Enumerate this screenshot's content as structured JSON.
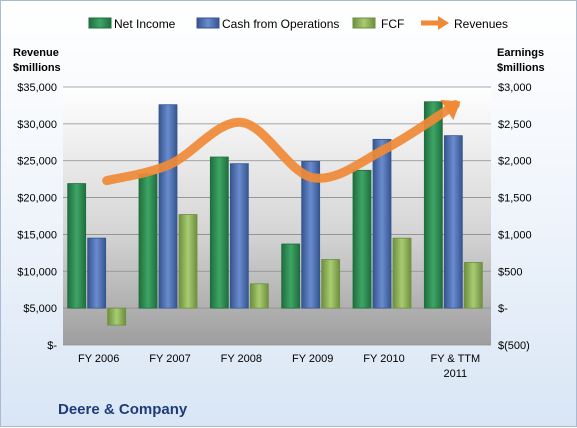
{
  "company": "Deere & Company",
  "colors": {
    "net_income": "#2e8a55",
    "cash_ops": "#4f72b8",
    "fcf": "#8fb55b",
    "revenues": "#f08a36"
  },
  "chart_data": {
    "type": "bar",
    "categories": [
      "FY 2006",
      "FY 2007",
      "FY 2008",
      "FY 2009",
      "FY 2010",
      "FY & TTM 2011"
    ],
    "series": [
      {
        "name": "Net Income",
        "axis": "right",
        "values": [
          1690,
          1820,
          2050,
          870,
          1870,
          2800
        ]
      },
      {
        "name": "Cash from Operations",
        "axis": "right",
        "values": [
          950,
          2760,
          1960,
          1990,
          2290,
          2340
        ]
      },
      {
        "name": "FCF",
        "axis": "right",
        "values": [
          -230,
          1270,
          330,
          660,
          950,
          620
        ]
      },
      {
        "name": "Revenues",
        "axis": "left",
        "type": "line",
        "values": [
          22300,
          24500,
          30200,
          22700,
          26500,
          32600
        ]
      }
    ],
    "left_axis": {
      "title_line1": "Revenue",
      "title_line2": "$millions",
      "range": [
        0,
        35000
      ],
      "ticks": [
        "$35,000",
        "$30,000",
        "$25,000",
        "$20,000",
        "$15,000",
        "$10,000",
        "$5,000",
        "$-"
      ]
    },
    "right_axis": {
      "title_line1": "Earnings",
      "title_line2": "$millions",
      "range": [
        -500,
        3000
      ],
      "ticks": [
        "$3,000",
        "$2,500",
        "$2,000",
        "$1,500",
        "$1,000",
        "$500",
        "$-",
        "$(500)"
      ]
    },
    "x_tick_labels": [
      [
        "FY 2006"
      ],
      [
        "FY 2007"
      ],
      [
        "FY 2008"
      ],
      [
        "FY 2009"
      ],
      [
        "FY 2010"
      ],
      [
        "FY & TTM",
        "2011"
      ]
    ],
    "grid": true,
    "legend": "top"
  }
}
